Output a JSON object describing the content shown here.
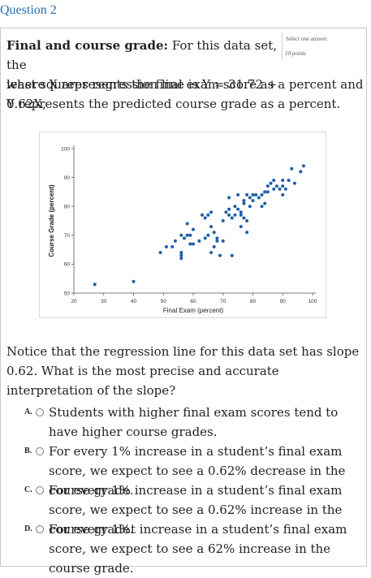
{
  "question": {
    "title": "Question 2",
    "meta": {
      "instruction": "Select one answer.",
      "points": "10 points"
    },
    "stem_heading": "Final and course grade:",
    "stem_line1_rest": " For this data set, the",
    "stem_line2": "least squares regression line is Y = 31.72 + 0.62X,",
    "stem_rest": "where X represents the final exam score as a percent and Y represents the predicted course grade as a percent.",
    "prompt": "Notice that the regression line for this data set has slope 0.62. What is the most precise and accurate interpretation of the slope?",
    "options": [
      {
        "letter": "A.",
        "text": "Students with higher final exam scores tend to have higher course grades."
      },
      {
        "letter": "B.",
        "text": "For every 1% increase in a student’s final exam score, we expect to see a 0.62% decrease in the course grade."
      },
      {
        "letter": "C.",
        "text": "For every 1% increase in a student’s final exam score, we expect to see a 0.62% increase in the course grade."
      },
      {
        "letter": "D.",
        "text": "For every 1%t increase in a student’s final exam score, we expect to see a 62% increase in the course grade."
      }
    ]
  },
  "colors": {
    "title": "#2a6db0",
    "point": "#1f5ea8"
  },
  "chart_data": {
    "type": "scatter",
    "xlabel": "Final Exam (percent)",
    "ylabel": "Course Grade (percent)",
    "xlim": [
      20,
      100
    ],
    "ylim": [
      50,
      100
    ],
    "xticks": [
      20,
      30,
      40,
      50,
      60,
      70,
      80,
      90,
      100
    ],
    "yticks": [
      50,
      60,
      70,
      80,
      90,
      100
    ],
    "grid": false,
    "points": [
      [
        27,
        53
      ],
      [
        40,
        54
      ],
      [
        49,
        64
      ],
      [
        51,
        66
      ],
      [
        53,
        66
      ],
      [
        54,
        68
      ],
      [
        56,
        64
      ],
      [
        56,
        63
      ],
      [
        56,
        62
      ],
      [
        56,
        70
      ],
      [
        57,
        69
      ],
      [
        58,
        70
      ],
      [
        58,
        74
      ],
      [
        59,
        67
      ],
      [
        59,
        70
      ],
      [
        60,
        67
      ],
      [
        60,
        72
      ],
      [
        62,
        68
      ],
      [
        63,
        77
      ],
      [
        64,
        76
      ],
      [
        64,
        69
      ],
      [
        65,
        70
      ],
      [
        65,
        77
      ],
      [
        66,
        73
      ],
      [
        66,
        78
      ],
      [
        66,
        64
      ],
      [
        67,
        66
      ],
      [
        67,
        71
      ],
      [
        68,
        68
      ],
      [
        68,
        69
      ],
      [
        69,
        63
      ],
      [
        70,
        68
      ],
      [
        70,
        75
      ],
      [
        71,
        78
      ],
      [
        72,
        79
      ],
      [
        72,
        83
      ],
      [
        72,
        77
      ],
      [
        73,
        76
      ],
      [
        73,
        63
      ],
      [
        74,
        77
      ],
      [
        74,
        80
      ],
      [
        75,
        79
      ],
      [
        75,
        84
      ],
      [
        76,
        77
      ],
      [
        76,
        73
      ],
      [
        76,
        78
      ],
      [
        77,
        81
      ],
      [
        77,
        82
      ],
      [
        77,
        76
      ],
      [
        78,
        71
      ],
      [
        78,
        75
      ],
      [
        78,
        84
      ],
      [
        79,
        80
      ],
      [
        79,
        83
      ],
      [
        80,
        84
      ],
      [
        80,
        82
      ],
      [
        81,
        84
      ],
      [
        82,
        83
      ],
      [
        83,
        84
      ],
      [
        83,
        80
      ],
      [
        84,
        81
      ],
      [
        84,
        85
      ],
      [
        85,
        87
      ],
      [
        85,
        85
      ],
      [
        86,
        88
      ],
      [
        87,
        86
      ],
      [
        87,
        89
      ],
      [
        88,
        87
      ],
      [
        89,
        86
      ],
      [
        90,
        87
      ],
      [
        90,
        89
      ],
      [
        90,
        84
      ],
      [
        91,
        86
      ],
      [
        92,
        89
      ],
      [
        93,
        93
      ],
      [
        94,
        88
      ],
      [
        96,
        92
      ],
      [
        97,
        94
      ]
    ]
  }
}
